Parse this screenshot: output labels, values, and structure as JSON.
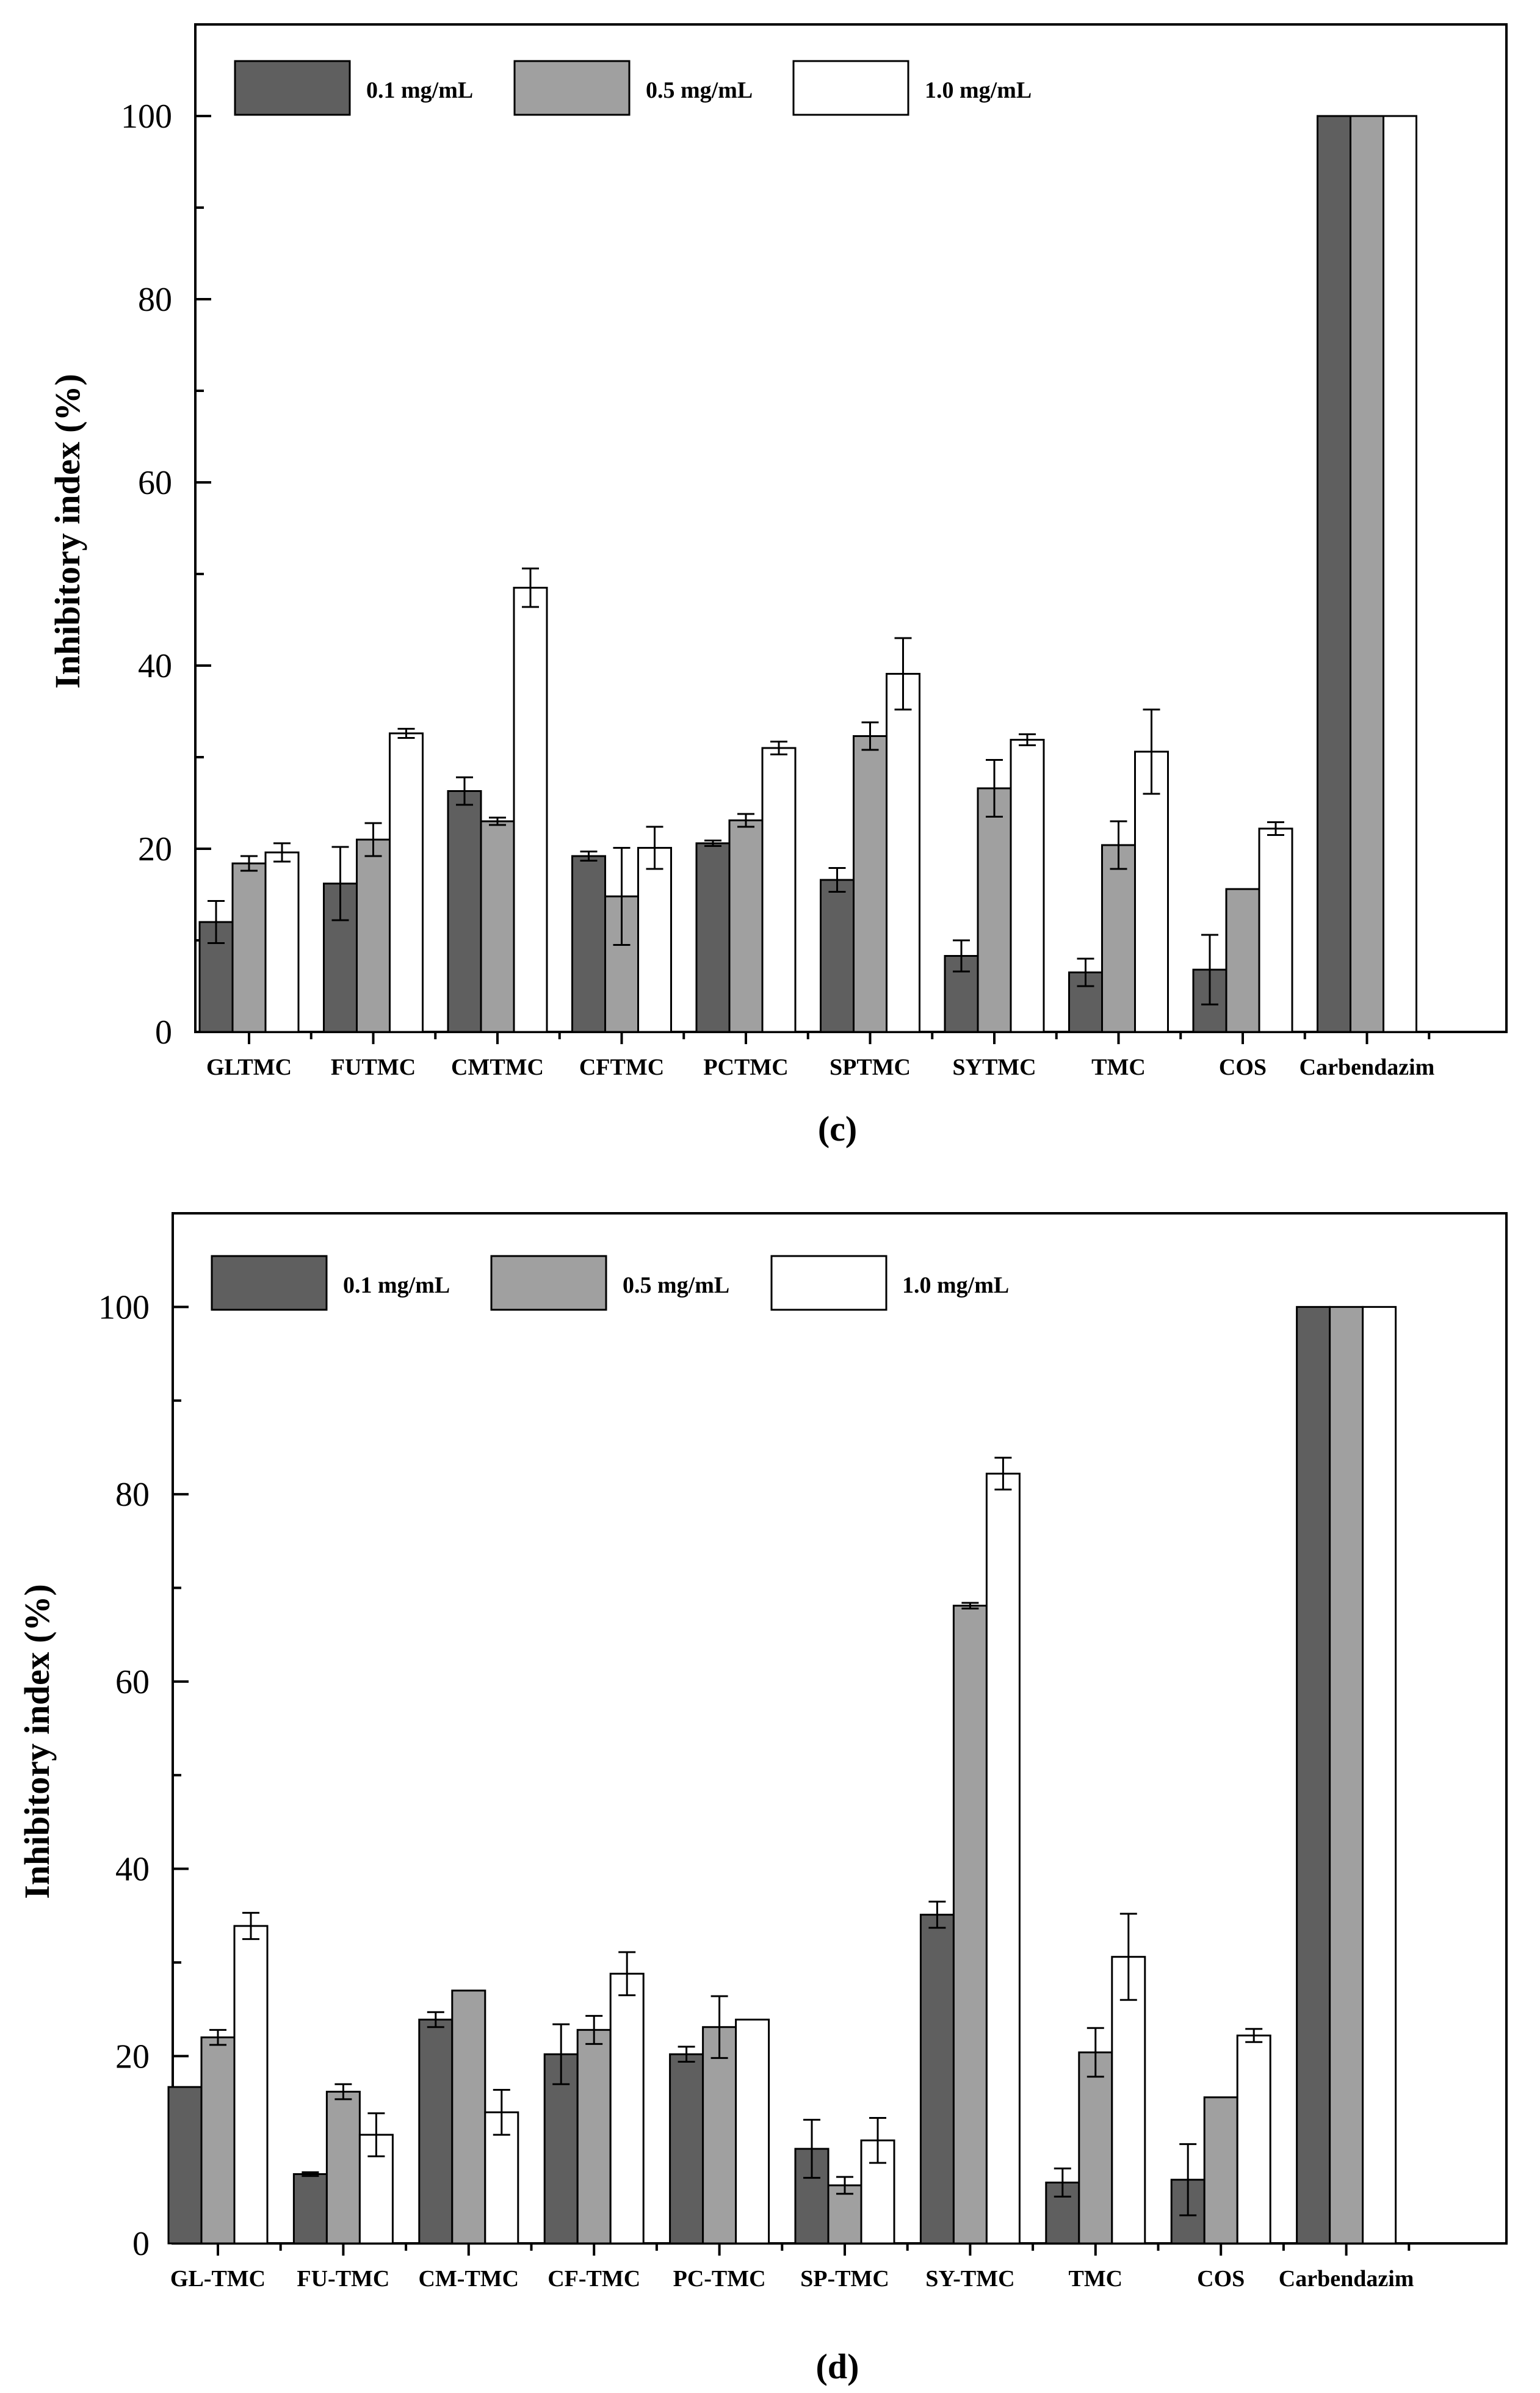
{
  "chart_data": [
    {
      "type": "bar",
      "panel_label": "(c)",
      "ylabel": "Inhibitory index (%)",
      "xlabel": "",
      "ylim": [
        0,
        110
      ],
      "yticks": [
        0,
        20,
        40,
        60,
        80,
        100
      ],
      "grid": false,
      "legend_position": "top-left",
      "categories": [
        "GLTMC",
        "FUTMC",
        "CMTMC",
        "CFTMC",
        "PCTMC",
        "SPTMC",
        "SYTMC",
        "TMC",
        "COS",
        "Carbendazim"
      ],
      "series": [
        {
          "name": "0.1 mg/mL",
          "color": "#5f5f5f",
          "values": [
            12.0,
            16.2,
            26.3,
            19.2,
            20.6,
            16.6,
            8.3,
            6.5,
            6.8,
            100
          ],
          "errors": [
            2.3,
            4.0,
            1.5,
            0.5,
            0.3,
            1.3,
            1.7,
            1.5,
            3.8,
            0
          ]
        },
        {
          "name": "0.5 mg/mL",
          "color": "#a0a0a0",
          "values": [
            18.4,
            21.0,
            23.0,
            14.8,
            23.1,
            32.3,
            26.6,
            20.4,
            15.6,
            100
          ],
          "errors": [
            0.8,
            1.8,
            0.4,
            5.3,
            0.7,
            1.5,
            3.1,
            2.6,
            0,
            0
          ]
        },
        {
          "name": "1.0 mg/mL",
          "color": "#ffffff",
          "values": [
            19.6,
            32.6,
            48.5,
            20.1,
            31.0,
            39.1,
            31.9,
            30.6,
            22.2,
            100
          ],
          "errors": [
            1.0,
            0.5,
            2.1,
            2.3,
            0.7,
            3.9,
            0.6,
            4.6,
            0.7,
            0
          ]
        }
      ]
    },
    {
      "type": "bar",
      "panel_label": "(d)",
      "ylabel": "Inhibitory index (%)",
      "xlabel": "",
      "ylim": [
        0,
        110
      ],
      "yticks": [
        0,
        20,
        40,
        60,
        80,
        100
      ],
      "grid": false,
      "legend_position": "top-left",
      "categories": [
        "GL-TMC",
        "FU-TMC",
        "CM-TMC",
        "CF-TMC",
        "PC-TMC",
        "SP-TMC",
        "SY-TMC",
        "TMC",
        "COS",
        "Carbendazim"
      ],
      "series": [
        {
          "name": "0.1 mg/mL",
          "color": "#5f5f5f",
          "values": [
            16.7,
            7.4,
            23.9,
            20.2,
            20.2,
            10.1,
            35.1,
            6.5,
            6.8,
            100
          ],
          "errors": [
            0,
            0.2,
            0.8,
            3.2,
            0.8,
            3.1,
            1.4,
            1.5,
            3.8,
            0
          ]
        },
        {
          "name": "0.5 mg/mL",
          "color": "#a0a0a0",
          "values": [
            22.0,
            16.2,
            27.0,
            22.8,
            23.1,
            6.2,
            68.1,
            20.4,
            15.6,
            100
          ],
          "errors": [
            0.8,
            0.8,
            0,
            1.5,
            3.3,
            0.9,
            0.3,
            2.6,
            0,
            0
          ]
        },
        {
          "name": "1.0 mg/mL",
          "color": "#ffffff",
          "values": [
            33.9,
            11.6,
            14.0,
            28.8,
            23.9,
            11.0,
            82.2,
            30.6,
            22.2,
            100
          ],
          "errors": [
            1.4,
            2.3,
            2.4,
            2.3,
            0,
            2.4,
            1.7,
            4.6,
            0.7,
            0
          ]
        }
      ]
    }
  ]
}
